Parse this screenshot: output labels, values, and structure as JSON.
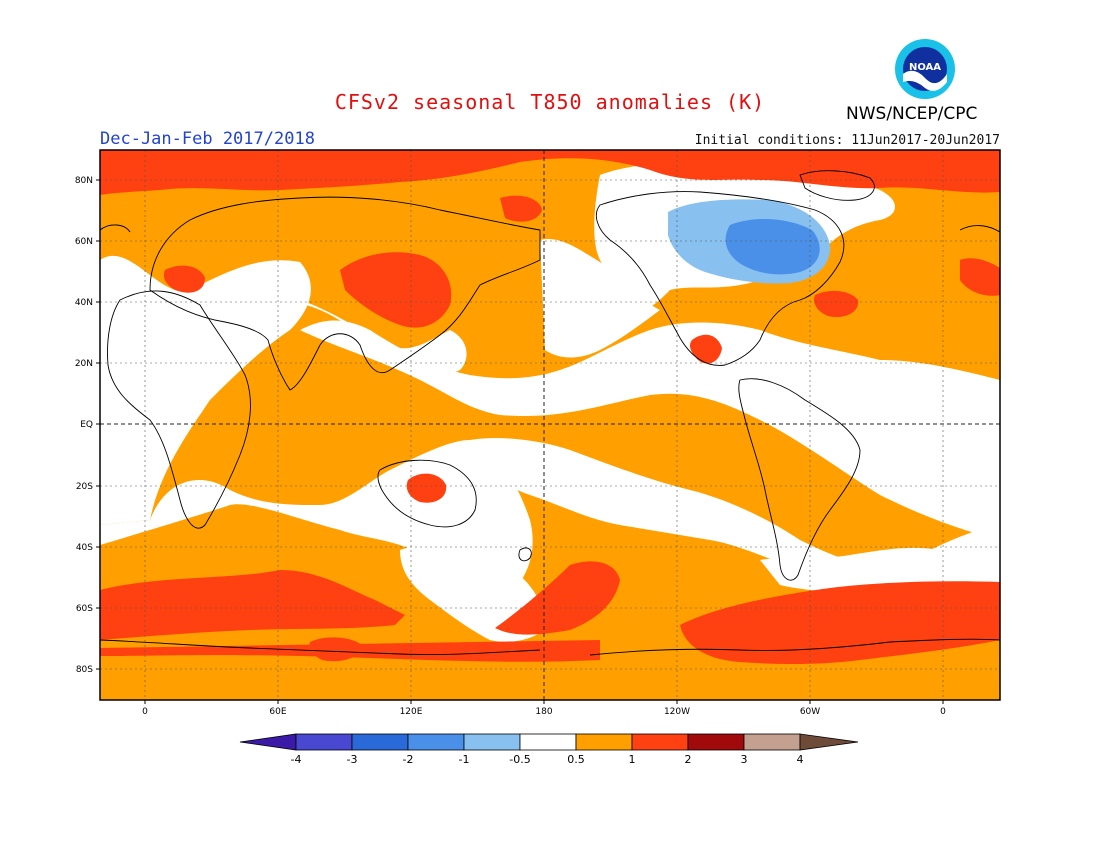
{
  "header": {
    "title": "CFSv2 seasonal T850 anomalies (K)",
    "period": "Dec-Jan-Feb 2017/2018",
    "initial_conditions": "Initial conditions: 11Jun2017-20Jun2017",
    "agency": "NWS/NCEP/CPC",
    "logo_text": "NOAA"
  },
  "map": {
    "lat_labels": [
      "80N",
      "60N",
      "40N",
      "20N",
      "EQ",
      "20S",
      "40S",
      "60S",
      "80S"
    ],
    "lon_labels": [
      "0",
      "60E",
      "120E",
      "180",
      "120W",
      "60W",
      "0"
    ]
  },
  "colorbar": {
    "labels": [
      "-4",
      "-3",
      "-2",
      "-1",
      "-0.5",
      "0.5",
      "1",
      "2",
      "3",
      "4"
    ],
    "colors": [
      "#3a1aa6",
      "#4848d0",
      "#2a6ad8",
      "#4a90e8",
      "#88c0f0",
      "#ffffff",
      "#ffa000",
      "#ff4010",
      "#a00a0a",
      "#c4a090",
      "#6e4a38"
    ]
  }
}
